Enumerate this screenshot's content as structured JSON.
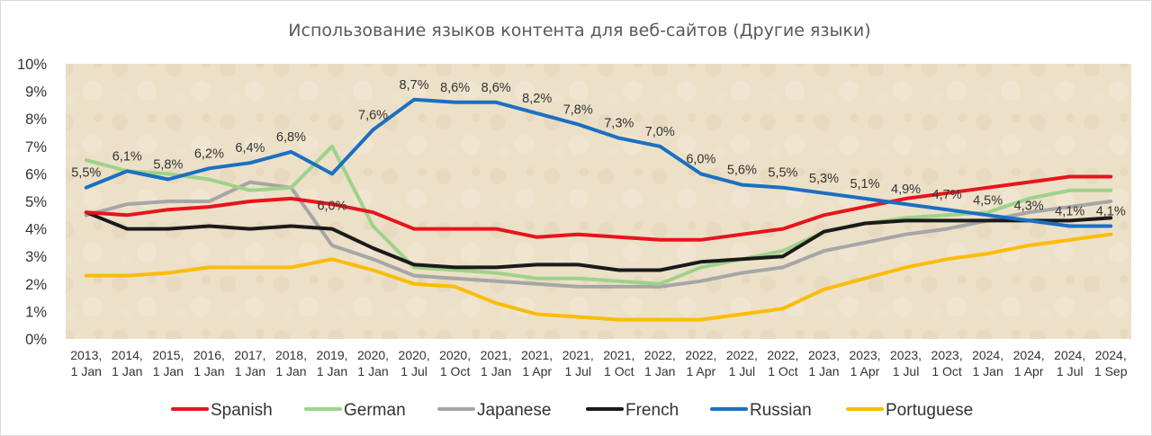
{
  "chart_data": {
    "type": "line",
    "title": "Использование языков контента для веб-сайтов (Другие языки)",
    "xlabel": "",
    "ylabel": "",
    "ylim": [
      0,
      10
    ],
    "y_ticks": [
      "0%",
      "1%",
      "2%",
      "3%",
      "4%",
      "5%",
      "6%",
      "7%",
      "8%",
      "9%",
      "10%"
    ],
    "grid": false,
    "legend_position": "bottom",
    "categories": [
      [
        "2013,",
        "1 Jan"
      ],
      [
        "2014,",
        "1 Jan"
      ],
      [
        "2015,",
        "1 Jan"
      ],
      [
        "2016,",
        "1 Jan"
      ],
      [
        "2017,",
        "1 Jan"
      ],
      [
        "2018,",
        "1 Jan"
      ],
      [
        "2019,",
        "1 Jan"
      ],
      [
        "2020,",
        "1 Jan"
      ],
      [
        "2020,",
        "1 Jul"
      ],
      [
        "2020,",
        "1 Oct"
      ],
      [
        "2021,",
        "1 Jan"
      ],
      [
        "2021,",
        "1 Apr"
      ],
      [
        "2021,",
        "1 Jul"
      ],
      [
        "2021,",
        "1 Oct"
      ],
      [
        "2022,",
        "1 Jan"
      ],
      [
        "2022,",
        "1 Apr"
      ],
      [
        "2022,",
        "1 Jul"
      ],
      [
        "2022,",
        "1 Oct"
      ],
      [
        "2023,",
        "1 Jan"
      ],
      [
        "2023,",
        "1 Apr"
      ],
      [
        "2023,",
        "1 Jul"
      ],
      [
        "2023,",
        "1 Oct"
      ],
      [
        "2024,",
        "1 Jan"
      ],
      [
        "2024,",
        "1 Apr"
      ],
      [
        "2024,",
        "1 Jul"
      ],
      [
        "2024,",
        "1 Sep"
      ]
    ],
    "series": [
      {
        "name": "Spanish",
        "color": "#e8141c",
        "values": [
          4.6,
          4.5,
          4.7,
          4.8,
          5.0,
          5.1,
          4.9,
          4.6,
          4.0,
          4.0,
          4.0,
          3.7,
          3.8,
          3.7,
          3.6,
          3.6,
          3.8,
          4.0,
          4.5,
          4.8,
          5.1,
          5.3,
          5.5,
          5.7,
          5.9,
          5.9
        ]
      },
      {
        "name": "German",
        "color": "#9ed28a",
        "values": [
          6.5,
          6.1,
          6.0,
          5.8,
          5.4,
          5.5,
          7.0,
          4.1,
          2.6,
          2.5,
          2.4,
          2.2,
          2.2,
          2.1,
          2.0,
          2.6,
          2.9,
          3.2,
          3.9,
          4.2,
          4.4,
          4.5,
          4.6,
          5.1,
          5.4,
          5.4
        ]
      },
      {
        "name": "Japanese",
        "color": "#a6a6a6",
        "values": [
          4.5,
          4.9,
          5.0,
          5.0,
          5.7,
          5.5,
          3.4,
          2.9,
          2.3,
          2.2,
          2.1,
          2.0,
          1.9,
          1.9,
          1.9,
          2.1,
          2.4,
          2.6,
          3.2,
          3.5,
          3.8,
          4.0,
          4.3,
          4.6,
          4.8,
          5.0
        ]
      },
      {
        "name": "French",
        "color": "#1a1a1a",
        "values": [
          4.6,
          4.0,
          4.0,
          4.1,
          4.0,
          4.1,
          4.0,
          3.3,
          2.7,
          2.6,
          2.6,
          2.7,
          2.7,
          2.5,
          2.5,
          2.8,
          2.9,
          3.0,
          3.9,
          4.2,
          4.3,
          4.3,
          4.3,
          4.3,
          4.3,
          4.4
        ]
      },
      {
        "name": "Russian",
        "color": "#1b6fc0",
        "values": [
          5.5,
          6.1,
          5.8,
          6.2,
          6.4,
          6.8,
          6.0,
          7.6,
          8.7,
          8.6,
          8.6,
          8.2,
          7.8,
          7.3,
          7.0,
          6.0,
          5.6,
          5.5,
          5.3,
          5.1,
          4.9,
          4.7,
          4.5,
          4.3,
          4.1,
          4.1
        ],
        "data_labels": [
          "5,5%",
          "6,1%",
          "5,8%",
          "6,2%",
          "6,4%",
          "6,8%",
          "6,0%",
          "7,6%",
          "8,7%",
          "8,6%",
          "8,6%",
          "8,2%",
          "7,8%",
          "7,3%",
          "7,0%",
          "6,0%",
          "5,6%",
          "5,5%",
          "5,3%",
          "5,1%",
          "4,9%",
          "4,7%",
          "4,5%",
          "4,3%",
          "4,1%",
          "4,1%"
        ]
      },
      {
        "name": "Portuguese",
        "color": "#fbbc05",
        "values": [
          2.3,
          2.3,
          2.4,
          2.6,
          2.6,
          2.6,
          2.9,
          2.5,
          2.0,
          1.9,
          1.3,
          0.9,
          0.8,
          0.7,
          0.7,
          0.7,
          0.9,
          1.1,
          1.8,
          2.2,
          2.6,
          2.9,
          3.1,
          3.4,
          3.6,
          3.8
        ]
      }
    ]
  }
}
